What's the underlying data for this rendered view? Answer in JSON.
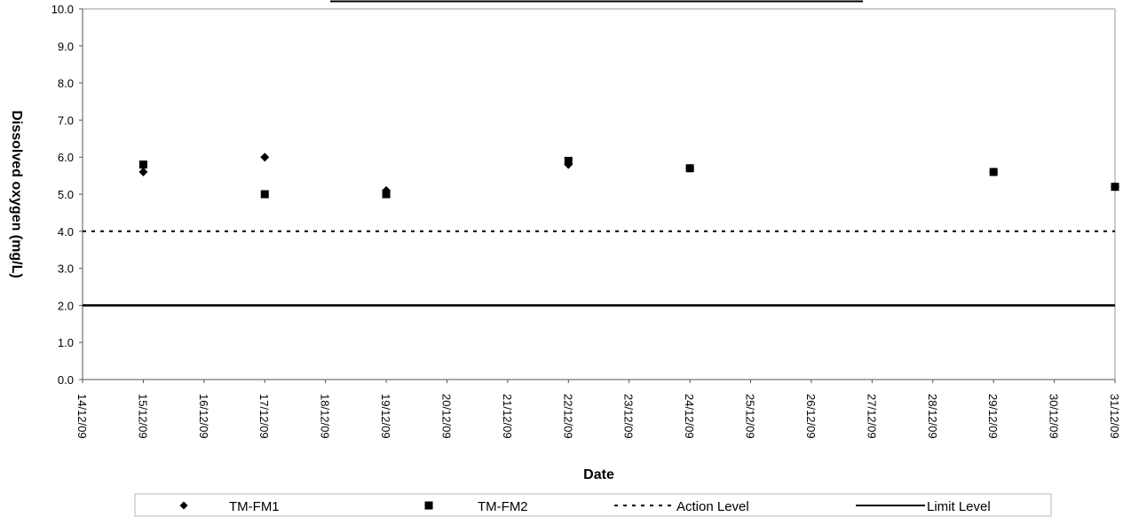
{
  "chart_data": {
    "type": "scatter",
    "title": "",
    "xlabel": "Date",
    "ylabel": "Dissolved oxygen (mg/L)",
    "ylim": [
      0,
      10
    ],
    "y_ticks": [
      "0.0",
      "1.0",
      "2.0",
      "3.0",
      "4.0",
      "5.0",
      "6.0",
      "7.0",
      "8.0",
      "9.0",
      "10.0"
    ],
    "x_ticks": [
      "14/12/09",
      "15/12/09",
      "16/12/09",
      "17/12/09",
      "18/12/09",
      "19/12/09",
      "20/12/09",
      "21/12/09",
      "22/12/09",
      "23/12/09",
      "24/12/09",
      "25/12/09",
      "26/12/09",
      "27/12/09",
      "28/12/09",
      "29/12/09",
      "30/12/09",
      "31/12/09"
    ],
    "grid": false,
    "legend_position": "bottom",
    "series": [
      {
        "name": "TM-FM1",
        "marker": "diamond",
        "points": [
          {
            "x": "15/12/09",
            "y": 5.6
          },
          {
            "x": "17/12/09",
            "y": 6.0
          },
          {
            "x": "19/12/09",
            "y": 5.1
          },
          {
            "x": "22/12/09",
            "y": 5.8
          },
          {
            "x": "24/12/09",
            "y": 5.7
          },
          {
            "x": "29/12/09",
            "y": 5.6
          },
          {
            "x": "31/12/09",
            "y": 5.2
          }
        ]
      },
      {
        "name": "TM-FM2",
        "marker": "square",
        "points": [
          {
            "x": "15/12/09",
            "y": 5.8
          },
          {
            "x": "17/12/09",
            "y": 5.0
          },
          {
            "x": "19/12/09",
            "y": 5.0
          },
          {
            "x": "22/12/09",
            "y": 5.9
          },
          {
            "x": "24/12/09",
            "y": 5.7
          },
          {
            "x": "29/12/09",
            "y": 5.6
          },
          {
            "x": "31/12/09",
            "y": 5.2
          }
        ]
      },
      {
        "name": "Action Level",
        "line_style": "dashed",
        "y": 4.0
      },
      {
        "name": "Limit Level",
        "line_style": "solid",
        "y": 2.0
      }
    ]
  }
}
